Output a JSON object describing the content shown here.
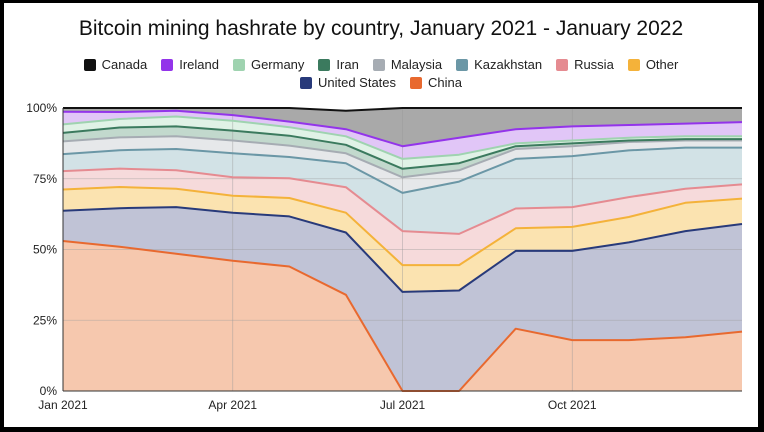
{
  "chart_data": {
    "type": "area",
    "stacked": "percent",
    "title": "Bitcoin mining hashrate by country, January 2021 - January 2022",
    "xlabel": "",
    "ylabel": "",
    "x": [
      "2021-01",
      "2021-02",
      "2021-03",
      "2021-04",
      "2021-05",
      "2021-06",
      "2021-07",
      "2021-08",
      "2021-09",
      "2021-10",
      "2021-11",
      "2021-12",
      "2022-01"
    ],
    "x_ticks": [
      "Jan 2021",
      "Apr 2021",
      "Jul 2021",
      "Oct 2021"
    ],
    "y_ticks": [
      "0%",
      "25%",
      "50%",
      "75%",
      "100%"
    ],
    "ylim": [
      0,
      100
    ],
    "legend_position": "top",
    "series": [
      {
        "name": "China",
        "color": "#e8692f",
        "fill": "#f6c8ae",
        "values": [
          53,
          51,
          48.5,
          46,
          44,
          34,
          0,
          0,
          22,
          18,
          18,
          19,
          21
        ]
      },
      {
        "name": "United States",
        "color": "#283a7a",
        "fill": "#c0c3d6",
        "values": [
          10.7,
          13.6,
          16.5,
          17,
          17.7,
          22,
          35,
          35.5,
          27.5,
          31.5,
          34.5,
          37.5,
          38
        ]
      },
      {
        "name": "Other",
        "color": "#f4b23a",
        "fill": "#fbe3b0",
        "values": [
          7.5,
          7.5,
          6.5,
          6,
          6.5,
          7,
          9.5,
          9,
          8,
          8.5,
          9,
          10,
          9
        ]
      },
      {
        "name": "Russia",
        "color": "#e58b91",
        "fill": "#f6dadb",
        "values": [
          6.5,
          6.5,
          6.5,
          6.5,
          7,
          9,
          12,
          11,
          7,
          7,
          7,
          5,
          5
        ]
      },
      {
        "name": "Kazakhstan",
        "color": "#6b97a6",
        "fill": "#d2e2e6",
        "values": [
          6,
          6.5,
          7.5,
          8.5,
          7.5,
          8.5,
          13.5,
          18.5,
          17.5,
          18,
          16.5,
          14.5,
          13
        ]
      },
      {
        "name": "Malaysia",
        "color": "#a6acb3",
        "fill": "#e6e8ea",
        "values": [
          4.5,
          4.5,
          4.5,
          4.5,
          4,
          3.5,
          5.5,
          4,
          3.5,
          3.5,
          3,
          2.5,
          2.5
        ]
      },
      {
        "name": "Iran",
        "color": "#3b7a5e",
        "fill": "#c2d9cd",
        "values": [
          3,
          3.5,
          3.5,
          3.5,
          3.5,
          3,
          3,
          2.5,
          1,
          1,
          0.5,
          0.5,
          0.5
        ]
      },
      {
        "name": "Germany",
        "color": "#9fd3b0",
        "fill": "#e0f2e6",
        "values": [
          3,
          3,
          3.5,
          3.5,
          3,
          3,
          3.5,
          3,
          1,
          1,
          1,
          1,
          1
        ]
      },
      {
        "name": "Ireland",
        "color": "#9334ea",
        "fill": "#e1c6f7",
        "values": [
          4.5,
          2.5,
          2,
          2,
          2,
          2.5,
          4.5,
          6,
          5,
          5,
          4.5,
          4.5,
          5
        ]
      },
      {
        "name": "Canada",
        "color": "#111111",
        "fill": "#a9a9a9",
        "values": [
          1.3,
          1.4,
          1,
          2.5,
          4.8,
          6.5,
          13.5,
          10.5,
          7.5,
          6.5,
          6,
          5.5,
          5
        ]
      }
    ]
  },
  "legend": {
    "row1": [
      {
        "label": "Canada",
        "color": "#111111"
      },
      {
        "label": "Ireland",
        "color": "#9334ea"
      },
      {
        "label": "Germany",
        "color": "#9fd3b0"
      },
      {
        "label": "Iran",
        "color": "#3b7a5e"
      },
      {
        "label": "Malaysia",
        "color": "#a6acb3"
      },
      {
        "label": "Kazakhstan",
        "color": "#6b97a6"
      },
      {
        "label": "Russia",
        "color": "#e58b91"
      },
      {
        "label": "Other",
        "color": "#f4b23a"
      }
    ],
    "row2": [
      {
        "label": "United States",
        "color": "#283a7a"
      },
      {
        "label": "China",
        "color": "#e8692f"
      }
    ]
  }
}
